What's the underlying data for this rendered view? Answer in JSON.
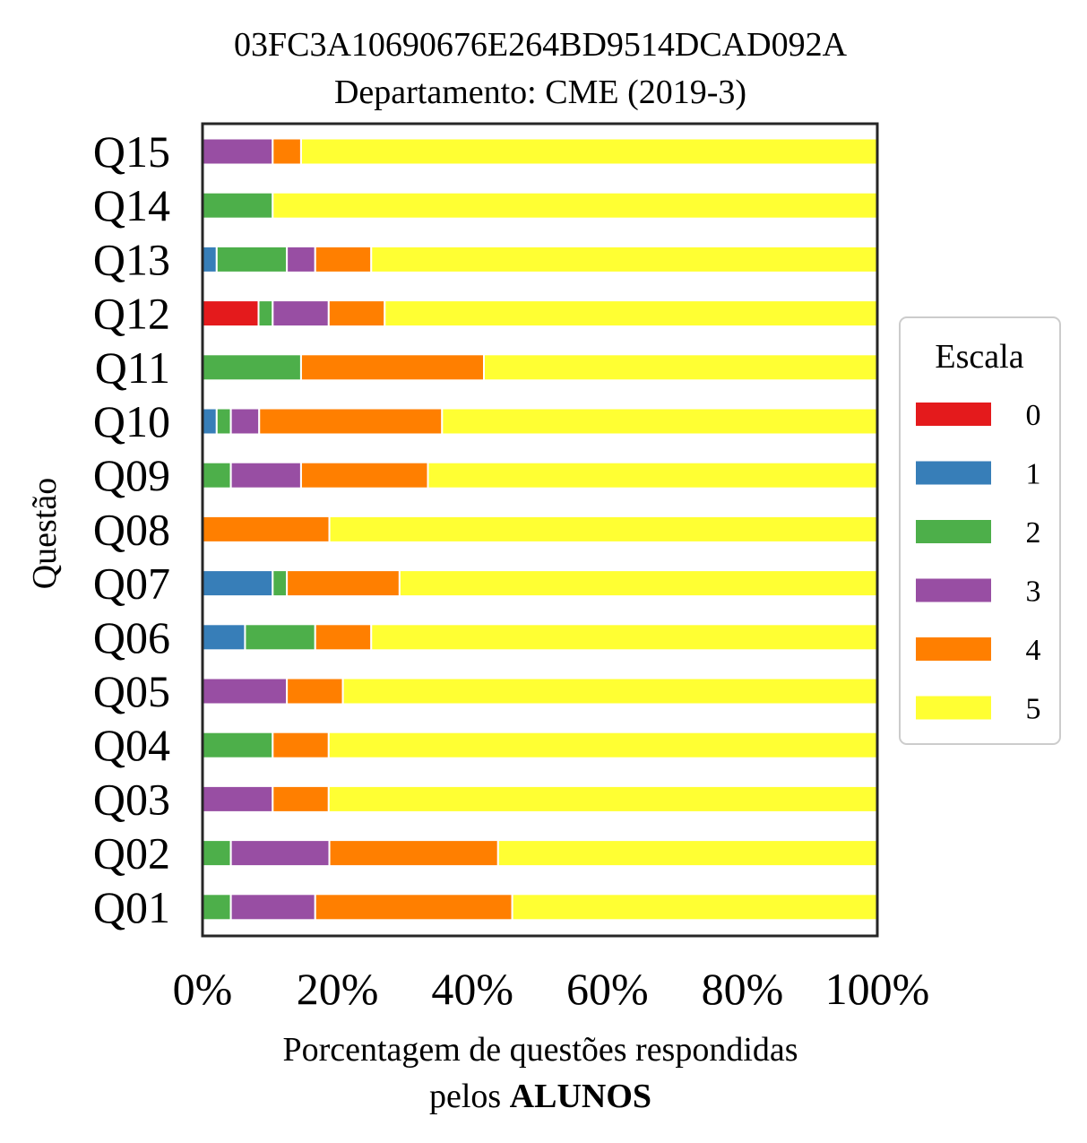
{
  "chart_data": {
    "type": "bar",
    "orientation": "horizontal",
    "stacked": true,
    "normalized": true,
    "title_line1": "03FC3A10690676E264BD9514DCAD092A",
    "title_line2": "Departamento: CME (2019-3)",
    "ylabel": "Questão",
    "xlabel_line1": "Porcentagem de questões respondidas",
    "xlabel_line2_prefix": "pelos ",
    "xlabel_line2_bold": "ALUNOS",
    "xlim": [
      0,
      100
    ],
    "xticks": [
      "0%",
      "20%",
      "40%",
      "60%",
      "80%",
      "100%"
    ],
    "grid": false,
    "legend": {
      "title": "Escala",
      "position": "right"
    },
    "categories": [
      "Q01",
      "Q02",
      "Q03",
      "Q04",
      "Q05",
      "Q06",
      "Q07",
      "Q08",
      "Q09",
      "Q10",
      "Q11",
      "Q12",
      "Q13",
      "Q14",
      "Q15"
    ],
    "series": [
      {
        "name": "0",
        "color": "#e41a1c",
        "values": [
          0,
          0,
          0,
          0,
          0,
          0,
          0,
          0,
          0,
          0,
          0,
          8.3,
          0,
          0,
          0
        ]
      },
      {
        "name": "1",
        "color": "#377eb8",
        "values": [
          0,
          0,
          0,
          0,
          0,
          6.3,
          10.4,
          0,
          0,
          2.1,
          0,
          0,
          2.1,
          0,
          0
        ]
      },
      {
        "name": "2",
        "color": "#4daf4a",
        "values": [
          4.2,
          4.2,
          0,
          10.4,
          0,
          10.4,
          2.1,
          0,
          4.2,
          2.1,
          14.6,
          2.1,
          10.4,
          10.4,
          0
        ]
      },
      {
        "name": "3",
        "color": "#984ea3",
        "values": [
          12.5,
          14.6,
          10.4,
          0,
          12.5,
          0,
          0,
          0,
          10.4,
          4.2,
          0,
          8.3,
          4.2,
          0,
          10.4
        ]
      },
      {
        "name": "4",
        "color": "#ff7f00",
        "values": [
          29.2,
          25,
          8.3,
          8.3,
          8.3,
          8.3,
          16.7,
          18.8,
          18.8,
          27.1,
          27.1,
          8.3,
          8.3,
          0,
          4.2
        ]
      },
      {
        "name": "5",
        "color": "#ffff33",
        "values": [
          54.1,
          56.2,
          81.3,
          81.3,
          79.2,
          75,
          70.8,
          81.2,
          66.6,
          64.5,
          58.3,
          73,
          75,
          89.6,
          85.4
        ]
      }
    ]
  }
}
